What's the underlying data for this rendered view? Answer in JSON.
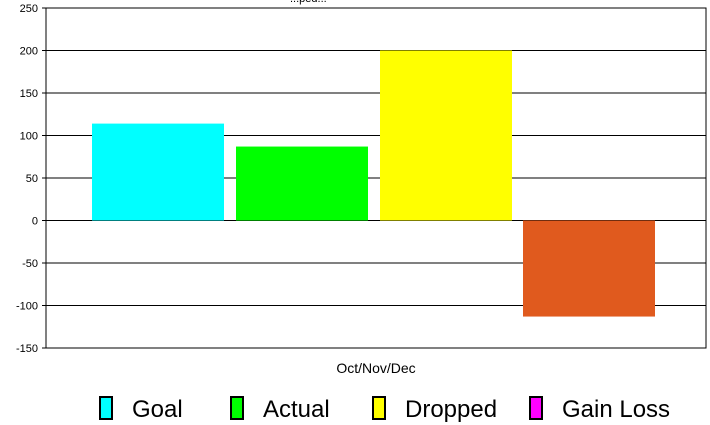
{
  "chart_data": {
    "type": "bar",
    "title_visible_fragment": "...ped...",
    "categories": [
      "Oct/Nov/Dec"
    ],
    "ylim": [
      -150,
      250
    ],
    "yticks": [
      250,
      200,
      150,
      100,
      50,
      0,
      -50,
      -100,
      -150
    ],
    "grid": true,
    "series": [
      {
        "name": "Goal",
        "values": [
          114
        ],
        "color": "#00ffff"
      },
      {
        "name": "Actual",
        "values": [
          87
        ],
        "color": "#00ff00"
      },
      {
        "name": "Dropped",
        "values": [
          200
        ],
        "color": "#ffff00"
      },
      {
        "name": "Gain Loss",
        "values": [
          -113
        ],
        "color": "#ff00ff",
        "bar_color": "#e05a1e"
      }
    ],
    "legend_position": "bottom"
  }
}
